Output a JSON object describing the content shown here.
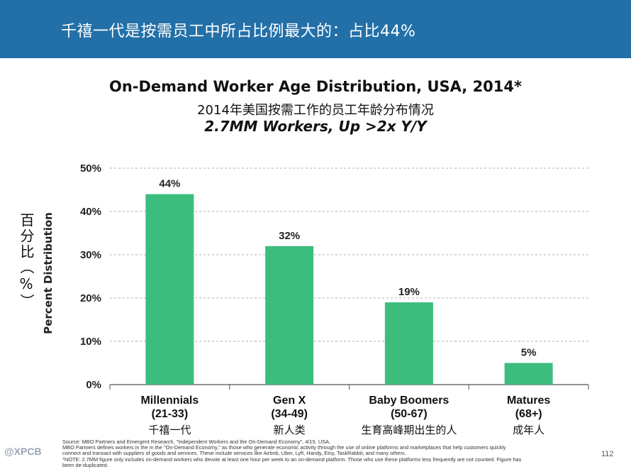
{
  "header": {
    "title": "千禧一代是按需员工中所占比例最大的：占比44%"
  },
  "titles": {
    "main": "On-Demand Worker Age Distribution, USA, 2014*",
    "chinese": "2014年美国按需工作的员工年龄分布情况",
    "subtitle": "2.7MM Workers, Up >2x Y/Y"
  },
  "axis": {
    "ylabel_cn": "百分比（%）",
    "ylabel_en": "Percent Distribution"
  },
  "colors": {
    "banner": "#2370a8",
    "bar": "#3dbd7d",
    "grid": "#b0b0b0"
  },
  "chart_data": {
    "type": "bar",
    "title": "On-Demand Worker Age Distribution, USA, 2014*",
    "subtitle": "2.7MM Workers, Up >2x Y/Y",
    "xlabel": "",
    "ylabel": "Percent Distribution",
    "ylim": [
      0,
      50
    ],
    "yticks": [
      0,
      10,
      20,
      30,
      40,
      50
    ],
    "ytick_labels": [
      "0%",
      "10%",
      "20%",
      "30%",
      "40%",
      "50%"
    ],
    "grid": true,
    "categories": [
      "Millennials",
      "Gen X",
      "Baby Boomers",
      "Matures"
    ],
    "ranges": [
      "(21-33)",
      "(34-49)",
      "(50-67)",
      "(68+)"
    ],
    "categories_cn": [
      "千禧一代",
      "新人类",
      "生育高峰期出生的人",
      "成年人"
    ],
    "values": [
      44,
      32,
      19,
      5
    ],
    "value_labels": [
      "44%",
      "32%",
      "19%",
      "5%"
    ]
  },
  "footer": {
    "lines": [
      "Source:  MBO Partners and Emergent Research, \"Independent Workers and the On-Demand Economy\", 4/15. USA.",
      "MBO Partners defines workers in the in the \"On-Demand Economy,\" as those who generate economic activity through the use of online platforms and marketplaces that help customers quickly",
      "connect and transact with suppliers of goods and services. These include services like Airbnb, Uber, Lyft, Handy, Etsy, TaskRabbit, and many others.",
      "*NOTE: 2.7MM figure only includes on-demand workers who devote at least one hour per week to an on-demand platform. Those who use these platforms less frequently are not counted. Figure has",
      "been de-duplicated."
    ]
  },
  "page_number": "112",
  "watermark": "@XPCB"
}
